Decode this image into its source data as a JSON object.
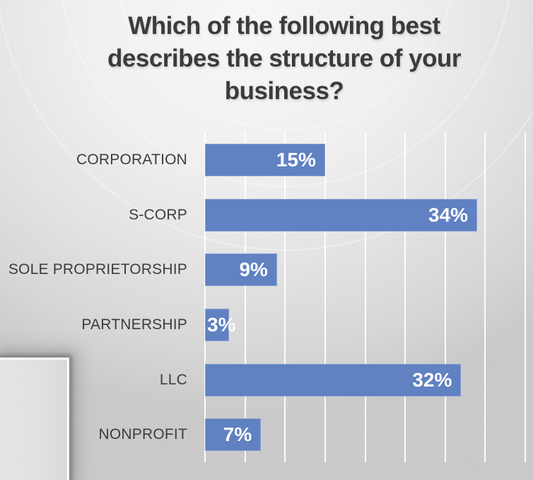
{
  "slide": {
    "title": "Which of the following best describes the structure of your business?"
  },
  "chart_data": {
    "type": "bar",
    "orientation": "horizontal",
    "title": "Which of the following best describes the structure of your business?",
    "categories": [
      "CORPORATION",
      "S-CORP",
      "SOLE PROPRIETORSHIP",
      "PARTNERSHIP",
      "LLC",
      "NONPROFIT"
    ],
    "values": [
      15,
      34,
      9,
      3,
      32,
      7
    ],
    "data_labels": [
      "15%",
      "34%",
      "9%",
      "3%",
      "32%",
      "7%"
    ],
    "xlabel": "",
    "ylabel": "",
    "xlim": [
      0,
      40
    ],
    "gridline_step": 5,
    "grid": "vertical-white",
    "legend_position": "none",
    "axis_tick_labels": "none",
    "bar_color": "#6081c2",
    "data_label_color": "#ffffff",
    "category_label_color": "#3d3d3d",
    "title_color": "#3b3b3b"
  }
}
